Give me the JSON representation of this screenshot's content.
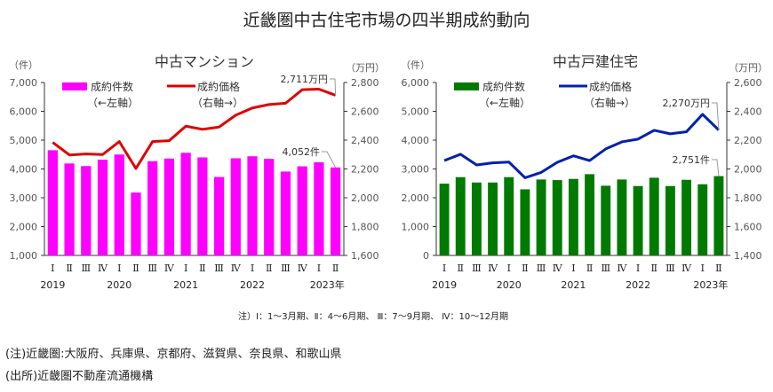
{
  "title": "近畿圏中古住宅市場の四半期成約動向",
  "quarter_note": "注）Ⅰ：1～3月期、Ⅱ：4～6月期、 Ⅲ：7～9月期、 Ⅳ：10～12月期",
  "region_note": "(注)近畿圏:大阪府、兵庫県、京都府、滋賀県、奈良県、和歌山県",
  "source_note": "(出所)近畿圏不動産流通機構",
  "chart_data": [
    {
      "type": "bar+line",
      "title": "中古マンション",
      "categories": [
        "Ⅰ",
        "Ⅱ",
        "Ⅲ",
        "Ⅳ",
        "Ⅰ",
        "Ⅱ",
        "Ⅲ",
        "Ⅳ",
        "Ⅰ",
        "Ⅱ",
        "Ⅲ",
        "Ⅳ",
        "Ⅰ",
        "Ⅱ",
        "Ⅲ",
        "Ⅳ",
        "Ⅰ",
        "Ⅱ"
      ],
      "years": [
        {
          "label": "2019",
          "index": 0
        },
        {
          "label": "2020",
          "index": 4
        },
        {
          "label": "2021",
          "index": 8
        },
        {
          "label": "2022",
          "index": 12
        },
        {
          "label": "2023年",
          "index": 16.5
        }
      ],
      "left_unit": "（件）",
      "right_unit": "（万円）",
      "left_ylim": [
        1000,
        7000
      ],
      "left_ticks": [
        "1,000",
        "2,000",
        "3,000",
        "4,000",
        "5,000",
        "6,000",
        "7,000"
      ],
      "right_ylim": [
        1600,
        2800
      ],
      "right_ticks": [
        "1,600",
        "1,800",
        "2,000",
        "2,200",
        "2,400",
        "2,600",
        "2,800"
      ],
      "series": [
        {
          "name": "成約件数",
          "sub": "（←左軸）",
          "axis": "left",
          "kind": "bar",
          "color": "#ff00ff",
          "values": [
            4650,
            4190,
            4100,
            4320,
            4500,
            3180,
            4270,
            4360,
            4560,
            4400,
            3720,
            4370,
            4440,
            4350,
            3910,
            4090,
            4230,
            4052
          ]
        },
        {
          "name": "成約価格",
          "sub": "（右軸→）",
          "axis": "right",
          "kind": "line",
          "color": "#e00000",
          "values": [
            2384,
            2297,
            2304,
            2300,
            2390,
            2203,
            2390,
            2396,
            2497,
            2475,
            2491,
            2573,
            2623,
            2647,
            2656,
            2750,
            2754,
            2711
          ]
        }
      ],
      "annotations": [
        "2,711万円",
        "4,052件"
      ]
    },
    {
      "type": "bar+line",
      "title": "中古戸建住宅",
      "categories": [
        "Ⅰ",
        "Ⅱ",
        "Ⅲ",
        "Ⅳ",
        "Ⅰ",
        "Ⅱ",
        "Ⅲ",
        "Ⅳ",
        "Ⅰ",
        "Ⅱ",
        "Ⅲ",
        "Ⅳ",
        "Ⅰ",
        "Ⅱ",
        "Ⅲ",
        "Ⅳ",
        "Ⅰ",
        "Ⅱ"
      ],
      "years": [
        {
          "label": "2019",
          "index": 0
        },
        {
          "label": "2020",
          "index": 4
        },
        {
          "label": "2021",
          "index": 8
        },
        {
          "label": "2022",
          "index": 12
        },
        {
          "label": "2023年",
          "index": 16.5
        }
      ],
      "left_unit": "（件）",
      "right_unit": "（万円）",
      "left_ylim": [
        0,
        6000
      ],
      "left_ticks": [
        "0",
        "1,000",
        "2,000",
        "3,000",
        "4,000",
        "5,000",
        "6,000"
      ],
      "right_ylim": [
        1400,
        2600
      ],
      "right_ticks": [
        "1,400",
        "1,600",
        "1,800",
        "2,000",
        "2,200",
        "2,400",
        "2,600"
      ],
      "series": [
        {
          "name": "成約件数",
          "sub": "（←左軸）",
          "axis": "left",
          "kind": "bar",
          "color": "#007a00",
          "values": [
            2490,
            2716,
            2530,
            2530,
            2716,
            2294,
            2634,
            2613,
            2654,
            2819,
            2418,
            2634,
            2407,
            2695,
            2407,
            2623,
            2469,
            2751
          ]
        },
        {
          "name": "成約価格",
          "sub": "（右軸→）",
          "axis": "right",
          "kind": "line",
          "color": "#0020b0",
          "values": [
            2058,
            2102,
            2028,
            2042,
            2048,
            1939,
            1976,
            2046,
            2091,
            2058,
            2139,
            2188,
            2207,
            2268,
            2244,
            2258,
            2379,
            2270
          ]
        }
      ],
      "annotations": [
        "2,270万円",
        "2,751件"
      ]
    }
  ]
}
